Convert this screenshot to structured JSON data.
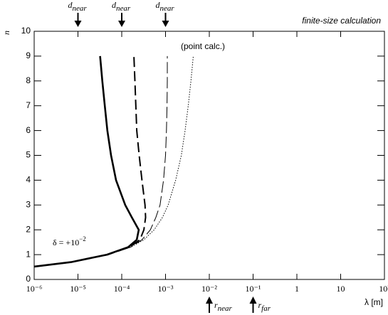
{
  "chart_data": {
    "type": "line",
    "title": "finite-size calculation",
    "x_label": "λ [m]",
    "y_label": "n",
    "xscale": "log",
    "xlim": [
      1e-06,
      100
    ],
    "ylim": [
      0,
      10
    ],
    "xticks": [
      {
        "value": 1e-06,
        "label": "10⁻⁶"
      },
      {
        "value": 1e-05,
        "label": "10⁻⁵"
      },
      {
        "value": 0.0001,
        "label": "10⁻⁴"
      },
      {
        "value": 0.001,
        "label": "10⁻³"
      },
      {
        "value": 0.01,
        "label": "10⁻²"
      },
      {
        "value": 0.1,
        "label": "10⁻¹"
      },
      1,
      10,
      {
        "value": 100,
        "label": "10²"
      }
    ],
    "yticks": [
      0,
      1,
      2,
      3,
      4,
      5,
      6,
      7,
      8,
      9,
      10
    ],
    "series": [
      {
        "color": "#000000",
        "style": "solid",
        "x": [
          1e-06,
          7e-06,
          4.6e-05,
          0.00014,
          0.00022,
          0.000245,
          0.00017,
          0.00012,
          7.4e-05,
          5.7e-05,
          4.7e-05,
          4.1e-05,
          3.6e-05,
          3.2e-05
        ],
        "values": [
          0.52,
          0.7,
          1.0,
          1.3,
          1.6,
          2.0,
          2.5,
          3,
          4,
          5,
          6,
          7,
          8,
          9
        ]
      },
      {
        "color": "#000000",
        "style": "dashed",
        "x": [
          1e-06,
          7e-06,
          4.8e-05,
          0.00015,
          0.00026,
          0.00032,
          0.00035,
          0.00034,
          0.00029,
          0.00025,
          0.00022,
          0.00021,
          0.0002,
          0.00019
        ],
        "values": [
          0.52,
          0.7,
          1.0,
          1.3,
          1.6,
          2.0,
          2.5,
          3,
          4,
          5,
          6,
          7,
          8,
          9
        ]
      },
      {
        "color": "#000000",
        "style": "longdash",
        "x": [
          1e-06,
          7e-06,
          4.7e-05,
          0.00016,
          0.00029,
          0.00045,
          0.0006,
          0.00075,
          0.0009,
          0.001,
          0.00105,
          0.00108,
          0.0011,
          0.0011
        ],
        "values": [
          0.52,
          0.7,
          1.0,
          1.3,
          1.6,
          2.0,
          2.5,
          3,
          4,
          5,
          6,
          7,
          8,
          9
        ]
      },
      {
        "color": "#000000",
        "style": "dotted",
        "x": [
          1e-06,
          7e-06,
          4.6e-05,
          0.00016,
          0.00032,
          0.00055,
          0.00085,
          0.00115,
          0.0017,
          0.0023,
          0.0028,
          0.0033,
          0.0038,
          0.0043
        ],
        "values": [
          0.52,
          0.7,
          1.0,
          1.3,
          1.6,
          2.0,
          2.5,
          3,
          4,
          5,
          6,
          7,
          8,
          9
        ]
      }
    ],
    "top_arrows": [
      {
        "text": "d",
        "sub": "near",
        "x": 1e-05
      },
      {
        "text": "d",
        "sub": "near",
        "x": 0.0001
      },
      {
        "text": "d",
        "sub": "near",
        "x": 0.001
      }
    ],
    "bottom_arrows": [
      {
        "text": "r",
        "sub": "near",
        "x": 0.01
      },
      {
        "text": "r",
        "sub": "far",
        "x": 0.1
      }
    ],
    "point_label": "(point calc.)",
    "delta_label": {
      "text": "δ = +10",
      "sup": "−2"
    }
  }
}
